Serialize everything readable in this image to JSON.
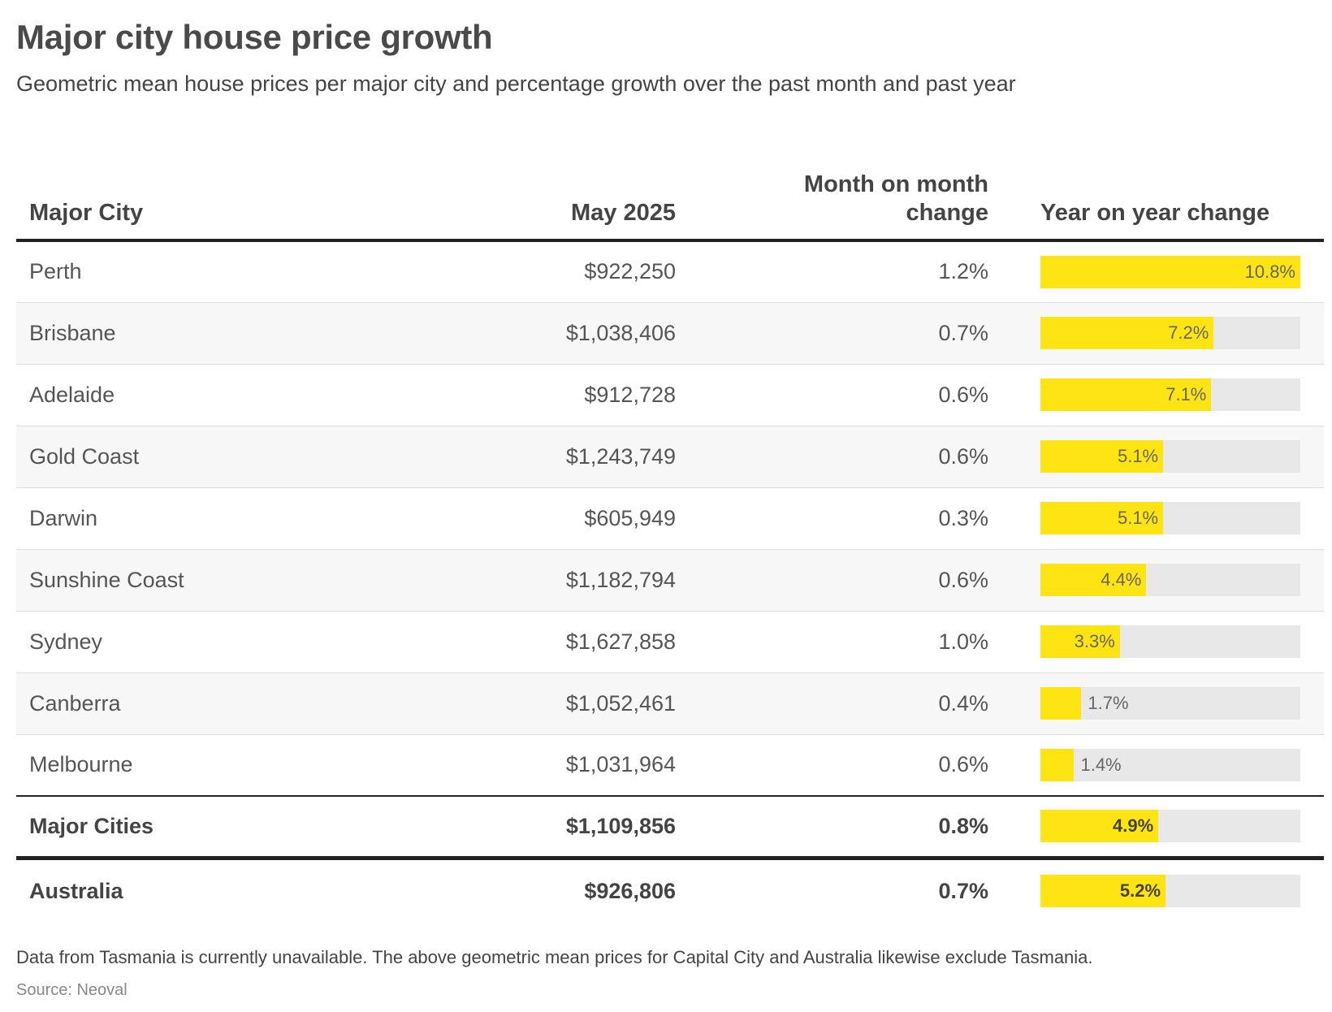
{
  "chart_data": {
    "type": "table",
    "title": "Major city house price growth",
    "subtitle": "Geometric mean house prices per major city and percentage growth over the past month and past year",
    "columns": {
      "city": "Major City",
      "may": "May 2025",
      "mom_line1": "Month on month",
      "mom_line2": "change",
      "yoy": "Year on year change"
    },
    "yoy_scale_max": 10.8,
    "rows": [
      {
        "city": "Perth",
        "may": "$922,250",
        "mom": "1.2%",
        "yoy": 10.8,
        "yoy_label": "10.8%"
      },
      {
        "city": "Brisbane",
        "may": "$1,038,406",
        "mom": "0.7%",
        "yoy": 7.2,
        "yoy_label": "7.2%"
      },
      {
        "city": "Adelaide",
        "may": "$912,728",
        "mom": "0.6%",
        "yoy": 7.1,
        "yoy_label": "7.1%"
      },
      {
        "city": "Gold Coast",
        "may": "$1,243,749",
        "mom": "0.6%",
        "yoy": 5.1,
        "yoy_label": "5.1%"
      },
      {
        "city": "Darwin",
        "may": "$605,949",
        "mom": "0.3%",
        "yoy": 5.1,
        "yoy_label": "5.1%"
      },
      {
        "city": "Sunshine Coast",
        "may": "$1,182,794",
        "mom": "0.6%",
        "yoy": 4.4,
        "yoy_label": "4.4%"
      },
      {
        "city": "Sydney",
        "may": "$1,627,858",
        "mom": "1.0%",
        "yoy": 3.3,
        "yoy_label": "3.3%"
      },
      {
        "city": "Canberra",
        "may": "$1,052,461",
        "mom": "0.4%",
        "yoy": 1.7,
        "yoy_label": "1.7%"
      },
      {
        "city": "Melbourne",
        "may": "$1,031,964",
        "mom": "0.6%",
        "yoy": 1.4,
        "yoy_label": "1.4%"
      }
    ],
    "summary_rows": [
      {
        "city": "Major Cities",
        "may": "$1,109,856",
        "mom": "0.8%",
        "yoy": 4.9,
        "yoy_label": "4.9%"
      },
      {
        "city": "Australia",
        "may": "$926,806",
        "mom": "0.7%",
        "yoy": 5.2,
        "yoy_label": "5.2%"
      }
    ],
    "colors": {
      "bar_fill": "#ffe414",
      "bar_track": "#e8e8e8"
    }
  },
  "footer": {
    "note": "Data from Tasmania is currently unavailable. The above geometric mean prices for Capital City and Australia likewise exclude Tasmania.",
    "source": "Source: Neoval"
  }
}
